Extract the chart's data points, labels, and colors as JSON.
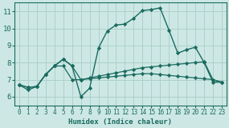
{
  "xlabel": "Humidex (Indice chaleur)",
  "xlim": [
    -0.5,
    23.5
  ],
  "ylim": [
    5.5,
    11.5
  ],
  "yticks": [
    6,
    7,
    8,
    9,
    10,
    11
  ],
  "xticks": [
    0,
    1,
    2,
    3,
    4,
    5,
    6,
    7,
    8,
    9,
    10,
    11,
    12,
    13,
    14,
    15,
    16,
    17,
    18,
    19,
    20,
    21,
    22,
    23
  ],
  "background_color": "#cde8e4",
  "grid_color": "#aed0cc",
  "line_color": "#1a6b60",
  "line1_x": [
    0,
    1,
    2,
    3,
    4,
    5,
    6,
    7,
    8,
    9,
    10,
    11,
    12,
    13,
    14,
    15,
    16,
    17,
    18,
    19,
    20,
    21,
    22,
    23
  ],
  "line1_y": [
    6.7,
    6.4,
    6.6,
    7.3,
    7.8,
    8.2,
    7.8,
    6.0,
    6.5,
    8.85,
    9.85,
    10.2,
    10.25,
    10.6,
    11.05,
    11.1,
    11.2,
    9.9,
    8.55,
    8.75,
    8.9,
    8.0,
    6.85,
    6.85
  ],
  "line2_x": [
    0,
    1,
    2,
    3,
    4,
    5,
    6,
    7,
    8,
    9,
    10,
    11,
    12,
    13,
    14,
    15,
    16,
    17,
    18,
    19,
    20,
    21,
    22,
    23
  ],
  "line2_y": [
    6.7,
    6.55,
    6.6,
    7.3,
    7.8,
    8.2,
    7.8,
    7.0,
    7.1,
    7.2,
    7.3,
    7.4,
    7.5,
    7.6,
    7.7,
    7.75,
    7.8,
    7.85,
    7.9,
    7.95,
    8.0,
    8.05,
    7.0,
    6.85
  ],
  "line3_x": [
    0,
    1,
    2,
    3,
    4,
    5,
    6,
    7,
    8,
    9,
    10,
    11,
    12,
    13,
    14,
    15,
    16,
    17,
    18,
    19,
    20,
    21,
    22,
    23
  ],
  "line3_y": [
    6.7,
    6.55,
    6.6,
    7.3,
    7.8,
    7.8,
    7.0,
    7.0,
    7.05,
    7.1,
    7.15,
    7.2,
    7.25,
    7.3,
    7.35,
    7.35,
    7.3,
    7.25,
    7.2,
    7.15,
    7.1,
    7.05,
    7.0,
    6.85
  ]
}
